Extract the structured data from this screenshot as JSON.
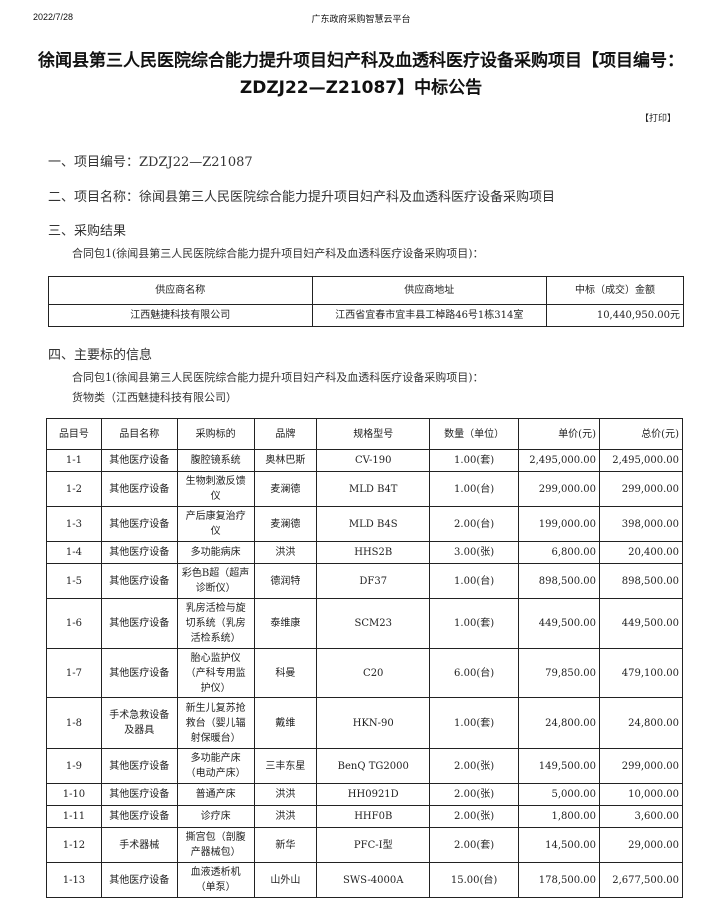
{
  "header": {
    "date": "2022/7/28",
    "site": "广东政府采购智慧云平台"
  },
  "title": "徐闻县第三人民医院综合能力提升项目妇产科及血透科医疗设备采购项目【项目编号：ZDZJ22—Z21087】中标公告",
  "print_label": "【打印】",
  "sections": {
    "s1": "一、项目编号：ZDZJ22—Z21087",
    "s2": "二、项目名称：徐闻县第三人民医院综合能力提升项目妇产科及血透科医疗设备采购项目",
    "s3": "三、采购结果",
    "s3_sub": "合同包1(徐闻县第三人民医院综合能力提升项目妇产科及血透科医疗设备采购项目)：",
    "s4": "四、主要标的信息",
    "s4_sub": "合同包1(徐闻县第三人民医院综合能力提升项目妇产科及血透科医疗设备采购项目)：",
    "s4_sub2": "货物类（江西魅捷科技有限公司）"
  },
  "result_table": {
    "headers": [
      "供应商名称",
      "供应商地址",
      "中标（成交）金额"
    ],
    "rows": [
      [
        "江西魅捷科技有限公司",
        "江西省宜春市宜丰县工棹路46号1栋314室",
        "10,440,950.00元"
      ]
    ]
  },
  "items_table": {
    "headers": [
      "品目号",
      "品目名称",
      "采购标的",
      "品牌",
      "规格型号",
      "数量（单位）",
      "单价(元)",
      "总价(元)"
    ],
    "rows": [
      [
        "1-1",
        "其他医疗设备",
        "腹腔镜系统",
        "奥林巴斯",
        "CV-190",
        "1.00(套)",
        "2,495,000.00",
        "2,495,000.00"
      ],
      [
        "1-2",
        "其他医疗设备",
        "生物刺激反馈仪",
        "麦澜德",
        "MLD B4T",
        "1.00(台)",
        "299,000.00",
        "299,000.00"
      ],
      [
        "1-3",
        "其他医疗设备",
        "产后康复治疗仪",
        "麦澜德",
        "MLD B4S",
        "2.00(台)",
        "199,000.00",
        "398,000.00"
      ],
      [
        "1-4",
        "其他医疗设备",
        "多功能病床",
        "洪洪",
        "HHS2B",
        "3.00(张)",
        "6,800.00",
        "20,400.00"
      ],
      [
        "1-5",
        "其他医疗设备",
        "彩色B超（超声诊断仪）",
        "德润特",
        "DF37",
        "1.00(台)",
        "898,500.00",
        "898,500.00"
      ],
      [
        "1-6",
        "其他医疗设备",
        "乳房活检与旋切系统（乳房活检系统）",
        "泰维康",
        "SCM23",
        "1.00(套)",
        "449,500.00",
        "449,500.00"
      ],
      [
        "1-7",
        "其他医疗设备",
        "胎心监护仪（产科专用监护仪）",
        "科曼",
        "C20",
        "6.00(台)",
        "79,850.00",
        "479,100.00"
      ],
      [
        "1-8",
        "手术急救设备及器具",
        "新生儿复苏抢救台（婴儿辐射保暖台）",
        "戴维",
        "HKN-90",
        "1.00(套)",
        "24,800.00",
        "24,800.00"
      ],
      [
        "1-9",
        "其他医疗设备",
        "多功能产床（电动产床）",
        "三丰东星",
        "BenQ TG2000",
        "2.00(张)",
        "149,500.00",
        "299,000.00"
      ],
      [
        "1-10",
        "其他医疗设备",
        "普通产床",
        "洪洪",
        "HH0921D",
        "2.00(张)",
        "5,000.00",
        "10,000.00"
      ],
      [
        "1-11",
        "其他医疗设备",
        "诊疗床",
        "洪洪",
        "HHF0B",
        "2.00(张)",
        "1,800.00",
        "3,600.00"
      ],
      [
        "1-12",
        "手术器械",
        "撕宫包（剖腹产器械包）",
        "新华",
        "PFC-I型",
        "2.00(套)",
        "14,500.00",
        "29,000.00"
      ],
      [
        "1-13",
        "其他医疗设备",
        "血液透析机（单泵）",
        "山外山",
        "SWS-4000A",
        "15.00(台)",
        "178,500.00",
        "2,677,500.00"
      ]
    ]
  }
}
